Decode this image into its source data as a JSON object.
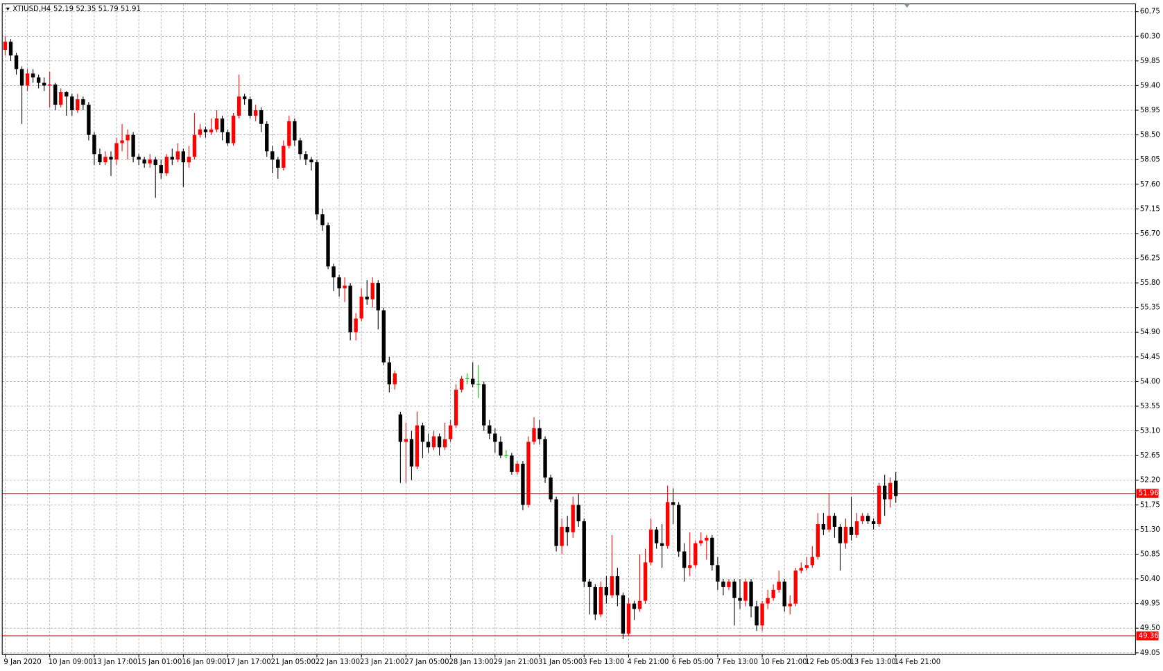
{
  "chart_data": {
    "type": "candlestick",
    "symbol": "XTIUSD,H4",
    "categories": [
      "9 Jan 2020",
      null,
      null,
      null,
      null,
      null,
      null,
      null,
      "10 Jan 09:00",
      null,
      null,
      null,
      null,
      null,
      null,
      null,
      "13 Jan 17:00",
      null,
      null,
      null,
      null,
      null,
      null,
      null,
      "15 Jan 01:00",
      null,
      null,
      null,
      null,
      null,
      null,
      null,
      "16 Jan 09:00",
      null,
      null,
      null,
      null,
      null,
      null,
      null,
      "17 Jan 17:00",
      null,
      null,
      null,
      null,
      null,
      null,
      null,
      "21 Jan 05:00",
      null,
      null,
      null,
      null,
      null,
      null,
      null,
      "22 Jan 13:00",
      null,
      null,
      null,
      null,
      null,
      null,
      null,
      "23 Jan 21:00",
      null,
      null,
      null,
      null,
      null,
      null,
      null,
      "27 Jan 05:00",
      null,
      null,
      null,
      null,
      null,
      null,
      null,
      "28 Jan 13:00",
      null,
      null,
      null,
      null,
      null,
      null,
      null,
      "29 Jan 21:00",
      null,
      null,
      null,
      null,
      null,
      null,
      null,
      "31 Jan 05:00",
      null,
      null,
      null,
      null,
      null,
      null,
      null,
      "3 Feb 13:00",
      null,
      null,
      null,
      null,
      null,
      null,
      null,
      "4 Feb 21:00",
      null,
      null,
      null,
      null,
      null,
      null,
      null,
      "6 Feb 05:00",
      null,
      null,
      null,
      null,
      null,
      null,
      null,
      "7 Feb 13:00",
      null,
      null,
      null,
      null,
      null,
      null,
      null,
      "10 Feb 21:00",
      null,
      null,
      null,
      null,
      null,
      null,
      null,
      "12 Feb 05:00",
      null,
      null,
      null,
      null,
      null,
      null,
      null,
      "13 Feb 13:00",
      null,
      null,
      null,
      null,
      null,
      null,
      null,
      "14 Feb 21:00"
    ],
    "open": [
      60.05,
      60.2,
      59.95,
      59.7,
      59.4,
      59.62,
      59.55,
      59.45,
      59.4,
      59.42,
      59.05,
      59.28,
      59.2,
      58.95,
      59.15,
      59.05,
      58.5,
      58.15,
      58.0,
      58.1,
      58.05,
      58.35,
      58.4,
      58.5,
      58.1,
      58.05,
      57.98,
      58.05,
      57.95,
      57.8,
      58.1,
      58.05,
      58.2,
      58.0,
      58.1,
      58.5,
      58.6,
      58.55,
      58.6,
      58.8,
      58.55,
      58.35,
      58.85,
      59.2,
      59.15,
      58.85,
      58.95,
      58.7,
      58.2,
      58.05,
      57.9,
      58.3,
      58.75,
      58.4,
      58.15,
      58.05,
      58.0,
      57.05,
      56.85,
      56.1,
      55.9,
      55.7,
      55.75,
      54.9,
      55.15,
      55.55,
      55.5,
      55.8,
      55.3,
      54.35,
      53.95,
      53.4,
      52.9,
      52.95,
      52.45,
      53.2,
      52.9,
      52.8,
      53.0,
      52.8,
      52.95,
      53.2,
      53.85,
      54.05,
      54.05,
      53.95,
      53.95,
      53.2,
      53.05,
      52.9,
      52.65,
      52.65,
      52.35,
      52.5,
      51.75,
      52.9,
      53.15,
      52.95,
      52.25,
      51.85,
      51.0,
      51.35,
      51.25,
      51.75,
      51.45,
      50.35,
      50.25,
      49.75,
      50.25,
      50.1,
      50.45,
      50.1,
      49.4,
      49.95,
      49.85,
      50.0,
      50.7,
      51.3,
      51.05,
      51.0,
      51.8,
      51.75,
      50.9,
      50.6,
      50.65,
      51.05,
      51.1,
      51.15,
      50.65,
      50.35,
      50.25,
      50.35,
      50.05,
      50.0,
      50.35,
      49.9,
      49.55,
      49.95,
      50.05,
      50.2,
      50.35,
      49.9,
      49.95,
      50.55,
      50.6,
      50.65,
      50.8,
      51.4,
      51.3,
      51.55,
      51.35,
      51.05,
      51.35,
      51.2,
      51.45,
      51.55,
      51.45,
      51.4,
      52.1,
      51.85,
      52.19
    ],
    "high": [
      60.3,
      60.25,
      60.0,
      59.75,
      59.7,
      59.7,
      59.6,
      59.55,
      59.65,
      59.45,
      59.35,
      59.3,
      59.25,
      59.25,
      59.2,
      59.1,
      58.55,
      58.25,
      58.2,
      58.2,
      58.45,
      58.7,
      58.6,
      58.55,
      58.15,
      58.1,
      58.15,
      58.1,
      58.05,
      58.15,
      58.25,
      58.35,
      58.25,
      58.3,
      58.9,
      58.7,
      58.65,
      58.8,
      58.95,
      58.85,
      58.6,
      58.9,
      59.6,
      59.25,
      59.2,
      59.05,
      59.0,
      58.75,
      58.3,
      58.1,
      58.4,
      58.85,
      58.8,
      58.45,
      58.2,
      58.1,
      58.05,
      57.15,
      56.9,
      56.15,
      55.95,
      55.9,
      55.8,
      55.25,
      55.7,
      55.85,
      55.9,
      55.85,
      55.35,
      54.45,
      54.2,
      53.45,
      53.25,
      53.1,
      53.45,
      53.25,
      53.05,
      53.1,
      53.05,
      53.25,
      53.3,
      53.95,
      54.1,
      54.15,
      54.35,
      54.3,
      54.0,
      53.3,
      53.15,
      53.0,
      52.75,
      52.7,
      52.55,
      52.55,
      53.0,
      53.35,
      53.3,
      53.0,
      52.3,
      51.9,
      51.5,
      51.55,
      51.9,
      51.95,
      51.5,
      50.4,
      50.3,
      50.35,
      50.45,
      51.2,
      50.6,
      50.15,
      50.05,
      50.0,
      50.85,
      50.95,
      51.5,
      51.35,
      51.4,
      52.1,
      52.05,
      51.8,
      51.05,
      51.25,
      51.1,
      51.25,
      51.2,
      51.2,
      50.8,
      50.4,
      50.4,
      50.4,
      50.4,
      50.4,
      50.4,
      50.0,
      50.0,
      50.2,
      50.3,
      50.55,
      50.4,
      50.1,
      50.6,
      50.7,
      50.8,
      51.0,
      51.6,
      51.6,
      51.95,
      51.6,
      51.4,
      51.5,
      51.9,
      51.6,
      51.6,
      51.6,
      51.5,
      52.15,
      52.3,
      52.25,
      52.35
    ],
    "low": [
      59.95,
      59.85,
      59.6,
      58.7,
      59.3,
      59.45,
      59.35,
      59.3,
      59.0,
      58.95,
      59.0,
      58.85,
      58.85,
      58.9,
      58.95,
      58.4,
      57.95,
      57.95,
      57.95,
      57.75,
      57.95,
      58.2,
      58.05,
      58.0,
      57.95,
      57.9,
      57.9,
      57.35,
      57.7,
      57.75,
      57.95,
      58.0,
      57.55,
      57.9,
      58.05,
      58.45,
      58.45,
      58.5,
      58.55,
      58.4,
      58.3,
      58.3,
      58.8,
      59.05,
      58.8,
      58.75,
      58.55,
      58.1,
      57.8,
      57.7,
      57.85,
      58.25,
      58.3,
      58.05,
      57.95,
      57.85,
      56.95,
      56.75,
      56.05,
      55.65,
      55.55,
      55.45,
      54.75,
      54.75,
      55.1,
      55.4,
      55.35,
      54.95,
      54.3,
      53.8,
      53.85,
      52.15,
      52.15,
      52.2,
      52.4,
      52.6,
      52.7,
      52.75,
      52.65,
      52.75,
      52.9,
      53.15,
      53.8,
      53.95,
      53.9,
      53.7,
      53.1,
      52.95,
      52.7,
      52.6,
      52.6,
      52.3,
      52.3,
      51.65,
      51.7,
      52.85,
      52.85,
      52.15,
      51.8,
      50.9,
      50.85,
      51.0,
      51.15,
      51.35,
      50.25,
      49.75,
      49.65,
      49.7,
      49.95,
      50.05,
      49.9,
      49.3,
      49.35,
      49.65,
      49.8,
      49.95,
      50.65,
      50.95,
      50.6,
      50.95,
      51.4,
      50.8,
      50.35,
      50.45,
      50.6,
      51.0,
      50.75,
      50.55,
      50.2,
      50.1,
      50.2,
      49.55,
      49.85,
      49.9,
      49.7,
      49.45,
      49.45,
      49.85,
      50.0,
      50.15,
      49.8,
      49.75,
      49.9,
      50.5,
      50.55,
      50.6,
      50.75,
      51.2,
      51.25,
      51.15,
      50.55,
      50.95,
      51.1,
      51.15,
      51.4,
      51.4,
      51.3,
      51.35,
      51.55,
      51.7,
      51.79
    ],
    "close": [
      60.2,
      59.95,
      59.7,
      59.4,
      59.62,
      59.55,
      59.45,
      59.4,
      59.42,
      59.05,
      59.28,
      59.2,
      58.95,
      59.15,
      59.05,
      58.5,
      58.15,
      58.0,
      58.1,
      58.05,
      58.35,
      58.4,
      58.5,
      58.1,
      58.05,
      57.98,
      58.05,
      57.95,
      57.8,
      58.1,
      58.05,
      58.2,
      58.0,
      58.1,
      58.5,
      58.6,
      58.55,
      58.6,
      58.8,
      58.55,
      58.35,
      58.85,
      59.2,
      59.15,
      58.85,
      58.95,
      58.7,
      58.2,
      58.05,
      57.9,
      58.3,
      58.75,
      58.4,
      58.15,
      58.05,
      58.0,
      57.05,
      56.85,
      56.1,
      55.9,
      55.7,
      55.75,
      54.9,
      55.15,
      55.55,
      55.5,
      55.8,
      55.3,
      54.35,
      53.95,
      54.15,
      52.9,
      52.95,
      52.45,
      53.2,
      52.9,
      52.8,
      53.0,
      52.8,
      52.95,
      53.2,
      53.85,
      54.05,
      54.05,
      53.95,
      53.95,
      53.2,
      53.05,
      52.9,
      52.65,
      52.65,
      52.35,
      52.5,
      51.75,
      52.9,
      53.15,
      52.95,
      52.25,
      51.85,
      51.0,
      51.35,
      51.25,
      51.75,
      51.45,
      50.35,
      50.25,
      49.75,
      50.25,
      50.1,
      50.45,
      50.1,
      49.4,
      49.95,
      49.85,
      50.0,
      50.7,
      51.3,
      51.05,
      51.0,
      51.8,
      51.75,
      50.9,
      50.6,
      50.65,
      51.05,
      51.1,
      51.15,
      50.65,
      50.35,
      50.25,
      50.35,
      50.05,
      50.0,
      50.35,
      49.9,
      49.55,
      49.95,
      50.05,
      50.2,
      50.35,
      49.9,
      49.95,
      50.55,
      50.6,
      50.65,
      50.8,
      51.4,
      51.3,
      51.55,
      51.35,
      51.05,
      51.35,
      51.2,
      51.45,
      51.55,
      51.45,
      51.4,
      52.1,
      51.85,
      52.15,
      51.91
    ],
    "up_color": "#ff0000",
    "down_color": "#000000",
    "doji_color": "#00c000",
    "hlines": [
      51.96,
      49.36
    ],
    "hline_color": "#ff0000",
    "ylim": [
      49.02,
      60.89
    ],
    "yticks": [
      60.75,
      {
        "value": 60.3,
        "label": "60.30"
      },
      59.85,
      {
        "value": 59.4,
        "label": "59.40"
      },
      58.95,
      {
        "value": 58.5,
        "label": "58.50"
      },
      58.05,
      {
        "value": 57.6,
        "label": "57.60"
      },
      57.15,
      {
        "value": 56.7,
        "label": "56.70"
      },
      56.25,
      {
        "value": 55.8,
        "label": "55.80"
      },
      55.35,
      {
        "value": 54.9,
        "label": "54.90"
      },
      54.45,
      {
        "value": 54.0,
        "label": "54.00"
      },
      53.55,
      {
        "value": 53.1,
        "label": "53.10"
      },
      52.65,
      {
        "value": 52.2,
        "label": "52.20"
      },
      51.75,
      {
        "value": 51.3,
        "label": "51.30"
      },
      50.85,
      {
        "value": 50.4,
        "label": "50.40"
      },
      49.95,
      {
        "value": 49.5,
        "label": "49.50"
      },
      49.05
    ],
    "grid": true
  }
}
